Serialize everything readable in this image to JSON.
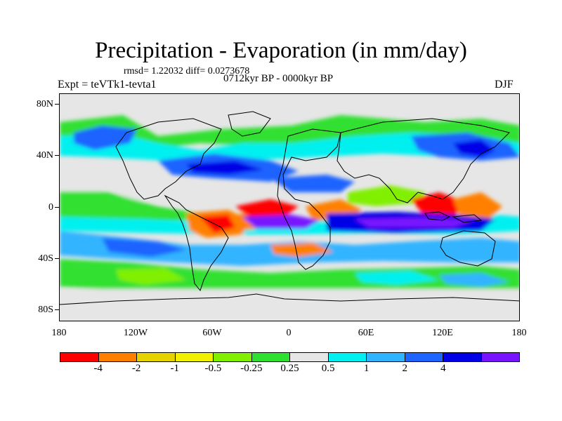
{
  "title": "Precipitation - Evaporation (in mm/day)",
  "stats": "rmsd= 1.22032 diff= 0.0273678",
  "period": "0712kyr BP - 0000kyr BP",
  "experiment": "Expt = teVTk1-tevta1",
  "season": "DJF",
  "map": {
    "lat_labels": [
      "80N",
      "40N",
      "0",
      "40S",
      "80S"
    ],
    "lon_labels": [
      "180",
      "120W",
      "60W",
      "0",
      "60E",
      "120E",
      "180"
    ],
    "land_colors": {
      "ocean_land_bg": "#e6e6e6",
      "coast": "#000000"
    }
  },
  "colorbar": {
    "colors": [
      "#ff0000",
      "#ff8000",
      "#e6d200",
      "#f0f000",
      "#80f000",
      "#30e030",
      "#e6e6e6",
      "#00f0f0",
      "#30b4ff",
      "#1e64ff",
      "#0000e6",
      "#7814ff"
    ],
    "labels": [
      "-4",
      "-2",
      "-1",
      "-0.5",
      "-0.25",
      "0.25",
      "0.5",
      "1",
      "2",
      "4"
    ]
  }
}
